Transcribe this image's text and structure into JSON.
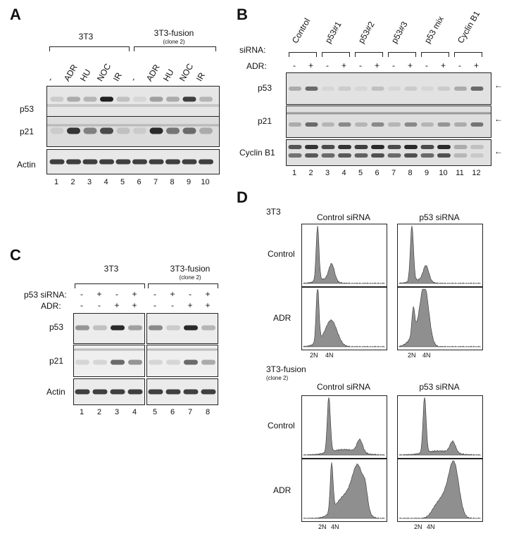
{
  "panels": {
    "A": {
      "letter": "A",
      "group1": "3T3",
      "group2": "3T3-fusion",
      "group2_sub": "(clone 2)",
      "treatments": [
        "-",
        "ADR",
        "HU",
        "NOC",
        "IR",
        "-",
        "ADR",
        "HU",
        "NOC",
        "IR"
      ],
      "rows": [
        "p53",
        "p21",
        "Actin"
      ],
      "lanes": [
        "1",
        "2",
        "3",
        "4",
        "5",
        "6",
        "7",
        "8",
        "9",
        "10"
      ],
      "intensity": {
        "p53": [
          0.15,
          0.3,
          0.25,
          0.95,
          0.2,
          0.1,
          0.35,
          0.3,
          0.8,
          0.25
        ],
        "p21": [
          0.15,
          0.85,
          0.5,
          0.75,
          0.2,
          0.15,
          0.9,
          0.55,
          0.6,
          0.3
        ],
        "Actin": [
          0.8,
          0.8,
          0.8,
          0.8,
          0.8,
          0.8,
          0.8,
          0.8,
          0.8,
          0.8
        ]
      }
    },
    "B": {
      "letter": "B",
      "sirna_label": "siRNA:",
      "adr_label": "ADR:",
      "groups": [
        "Control",
        "p53#1",
        "p53#2",
        "p53#3",
        "p53 mix",
        "Cyclin B1"
      ],
      "adr_signs": [
        "-",
        "+",
        "-",
        "+",
        "-",
        "+",
        "-",
        "+",
        "-",
        "+",
        "-",
        "+"
      ],
      "rows": [
        "p53",
        "p21",
        "Cyclin B1"
      ],
      "arrow": "←",
      "lanes": [
        "1",
        "2",
        "3",
        "4",
        "5",
        "6",
        "7",
        "8",
        "9",
        "10",
        "11",
        "12"
      ],
      "intensity": {
        "p53": [
          0.3,
          0.6,
          0.1,
          0.15,
          0.1,
          0.2,
          0.1,
          0.15,
          0.1,
          0.15,
          0.3,
          0.6
        ],
        "p21": [
          0.3,
          0.6,
          0.25,
          0.45,
          0.25,
          0.45,
          0.25,
          0.45,
          0.25,
          0.4,
          0.3,
          0.55
        ],
        "Cyclin B1": [
          0.7,
          0.85,
          0.75,
          0.85,
          0.8,
          0.9,
          0.75,
          0.9,
          0.75,
          0.9,
          0.3,
          0.2
        ]
      }
    },
    "C": {
      "letter": "C",
      "group1": "3T3",
      "group2": "3T3-fusion",
      "group2_sub": "(clone 2)",
      "p53_sirna_label": "p53 siRNA:",
      "adr_label": "ADR:",
      "sirna_signs": [
        "-",
        "+",
        "-",
        "+",
        "-",
        "+",
        "-",
        "+"
      ],
      "adr_signs": [
        "-",
        "-",
        "+",
        "+",
        "-",
        "-",
        "+",
        "+"
      ],
      "rows": [
        "p53",
        "p21",
        "Actin"
      ],
      "lanes": [
        "1",
        "2",
        "3",
        "4",
        "5",
        "6",
        "7",
        "8"
      ],
      "intensity": {
        "p53": [
          0.4,
          0.2,
          0.9,
          0.35,
          0.45,
          0.15,
          0.9,
          0.25
        ],
        "p21": [
          0.1,
          0.1,
          0.6,
          0.4,
          0.1,
          0.1,
          0.6,
          0.3
        ],
        "Actin": [
          0.8,
          0.8,
          0.8,
          0.8,
          0.8,
          0.8,
          0.8,
          0.8
        ]
      }
    },
    "D": {
      "letter": "D",
      "set1_title": "3T3",
      "set2_title": "3T3-fusion",
      "set2_sub": "(clone 2)",
      "col_labels": [
        "Control siRNA",
        "p53 siRNA"
      ],
      "row_labels": [
        "Control",
        "ADR"
      ],
      "axis_2n": "2N",
      "axis_4n": "4N"
    }
  }
}
